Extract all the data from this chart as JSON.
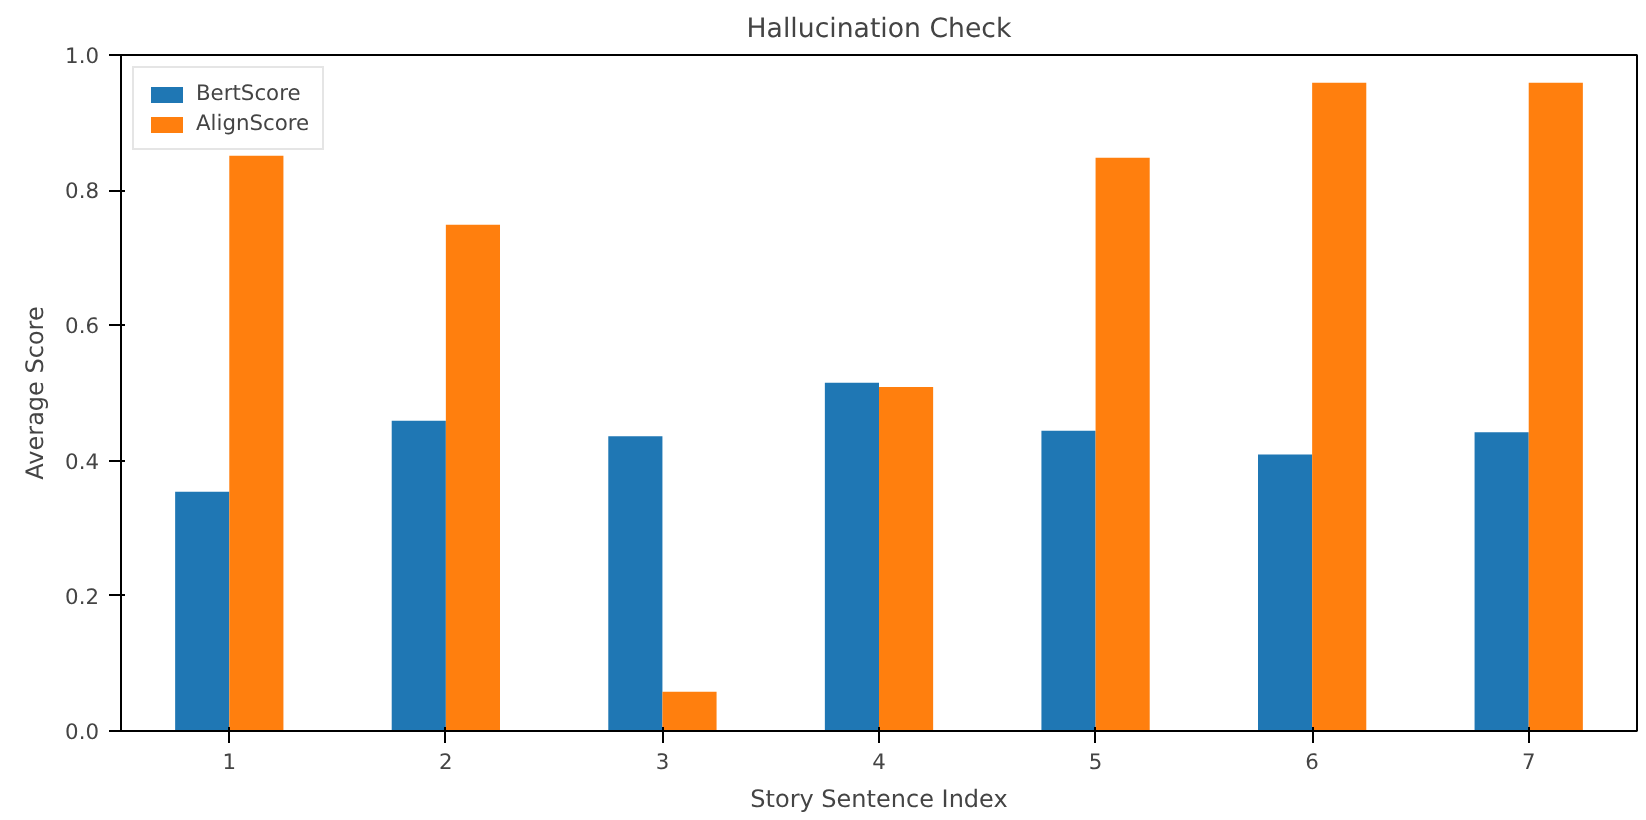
{
  "chart_data": {
    "type": "bar",
    "title": "Hallucination Check",
    "xlabel": "Story Sentence Index",
    "ylabel": "Average Score",
    "categories": [
      "1",
      "2",
      "3",
      "4",
      "5",
      "6",
      "7"
    ],
    "series": [
      {
        "name": "BertScore",
        "color": "#1f77b4",
        "values": [
          0.354,
          0.459,
          0.436,
          0.515,
          0.444,
          0.409,
          0.442
        ]
      },
      {
        "name": "AlignScore",
        "color": "#ff7f0e",
        "values": [
          0.851,
          0.749,
          0.058,
          0.509,
          0.848,
          0.959,
          0.959
        ]
      }
    ],
    "ylim": [
      0,
      1.0
    ],
    "yticks": [
      {
        "value": 0,
        "label": "0.0"
      },
      {
        "value": 0.2,
        "label": "0.2"
      },
      {
        "value": 0.4,
        "label": "0.4"
      },
      {
        "value": 0.6,
        "label": "0.6"
      },
      {
        "value": 0.8,
        "label": "0.8"
      },
      {
        "value": 1.0,
        "label": "1.0"
      }
    ],
    "grid": false,
    "legend": "top left"
  }
}
